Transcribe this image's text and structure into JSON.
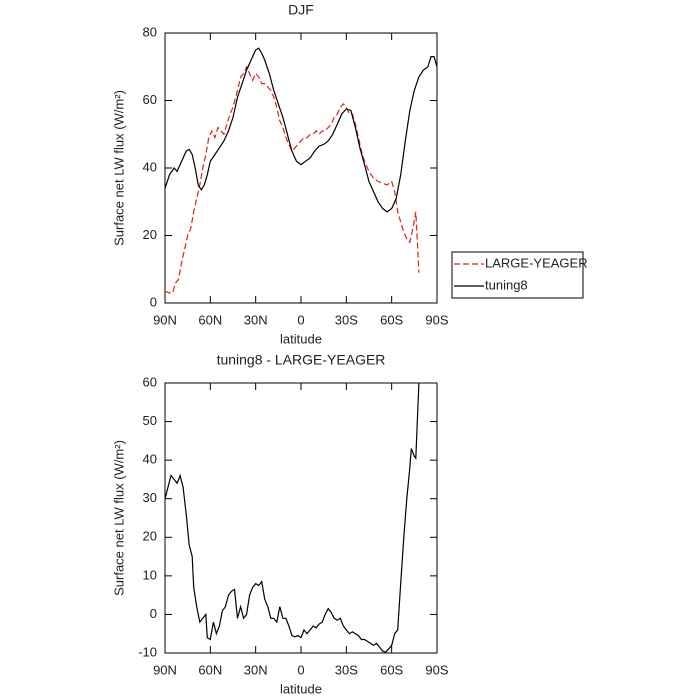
{
  "chart_data": [
    {
      "type": "line",
      "title": "DJF",
      "xlabel": "latitude",
      "ylabel": "Surface net LW flux (W/m²)",
      "xlim": [
        90,
        -90
      ],
      "ylim": [
        0,
        80
      ],
      "xticks": [
        {
          "value": 90,
          "label": "90N"
        },
        {
          "value": 60,
          "label": "60N"
        },
        {
          "value": 30,
          "label": "30N"
        },
        0,
        {
          "value": -30,
          "label": "30S"
        },
        {
          "value": -60,
          "label": "60S"
        },
        {
          "value": -90,
          "label": "90S"
        }
      ],
      "yticks": [
        0,
        20,
        40,
        60,
        80
      ],
      "legend": "right",
      "series": [
        {
          "name": "LARGE-YEAGER",
          "color": "#e0201b",
          "dashed": true,
          "x": [
            90,
            87,
            85,
            83,
            81,
            79,
            77,
            75,
            73,
            71,
            69,
            67,
            65,
            63,
            61,
            59,
            57,
            55,
            53,
            51,
            49,
            47,
            45,
            42,
            40,
            38,
            36,
            34,
            32,
            30,
            28,
            26,
            24,
            22,
            20,
            18,
            16,
            14,
            12,
            10,
            8,
            6,
            4,
            2,
            0,
            -2,
            -4,
            -6,
            -8,
            -10,
            -12,
            -14,
            -16,
            -18,
            -20,
            -22,
            -24,
            -26,
            -28,
            -30,
            -32,
            -34,
            -36,
            -38,
            -40,
            -42,
            -45,
            -48,
            -51,
            -54,
            -57,
            -60,
            -62,
            -64,
            -66,
            -68,
            -70,
            -72,
            -74,
            -76,
            -77,
            -78
          ],
          "values": [
            3.5,
            3,
            3,
            6,
            7,
            12,
            16,
            20,
            22,
            27,
            31,
            35,
            40,
            44,
            49,
            51,
            49,
            52,
            51,
            50,
            53,
            56,
            58,
            63,
            67,
            68,
            70,
            68,
            66,
            68,
            67,
            65,
            65,
            64,
            63,
            61,
            58,
            54,
            52,
            49,
            47,
            45,
            46,
            47,
            48,
            49,
            49,
            50,
            50,
            51,
            50,
            51,
            51,
            52,
            53,
            55,
            56,
            58,
            59,
            58,
            56,
            56,
            53,
            49,
            45,
            42,
            39,
            37,
            36,
            35.5,
            35,
            36,
            33,
            27,
            24,
            21,
            19,
            18,
            22,
            27,
            18,
            9
          ]
        },
        {
          "name": "tuning8",
          "color": "#000000",
          "dashed": false,
          "x": [
            90,
            87,
            84,
            82,
            79,
            76,
            74,
            72,
            70,
            68,
            66,
            64,
            62,
            60,
            57,
            54,
            51,
            48,
            45,
            42,
            39,
            36,
            33,
            30,
            28,
            26,
            24,
            21,
            18,
            15,
            12,
            9,
            6,
            3,
            0,
            -3,
            -6,
            -9,
            -12,
            -15,
            -18,
            -21,
            -24,
            -27,
            -30,
            -33,
            -36,
            -39,
            -42,
            -45,
            -48,
            -51,
            -54,
            -57,
            -60,
            -63,
            -66,
            -69,
            -72,
            -75,
            -78,
            -81,
            -84,
            -86,
            -88,
            -90
          ],
          "values": [
            34,
            38,
            40,
            39,
            42,
            45,
            45.5,
            44,
            40,
            35,
            33.5,
            35,
            38,
            42,
            44,
            46,
            48,
            51,
            55,
            61,
            65,
            69,
            72,
            75,
            75.5,
            74,
            72,
            68,
            63,
            59,
            55,
            50,
            45,
            42,
            41,
            42,
            43,
            45,
            46.5,
            47,
            48,
            50,
            53,
            56,
            57.5,
            57,
            52,
            46,
            41,
            36,
            33,
            30,
            28,
            27,
            28,
            31,
            38,
            48,
            57,
            63,
            67,
            69,
            70,
            73,
            73,
            70
          ]
        }
      ]
    },
    {
      "type": "line",
      "title": "tuning8 - LARGE-YEAGER",
      "xlabel": "latitude",
      "ylabel": "Surface net LW flux (W/m²)",
      "xlim": [
        90,
        -90
      ],
      "ylim": [
        -10,
        60
      ],
      "xticks": [
        {
          "value": 90,
          "label": "90N"
        },
        {
          "value": 60,
          "label": "60N"
        },
        {
          "value": 30,
          "label": "30N"
        },
        0,
        {
          "value": -30,
          "label": "30S"
        },
        {
          "value": -60,
          "label": "60S"
        },
        {
          "value": -90,
          "label": "90S"
        }
      ],
      "yticks": [
        -10,
        0,
        10,
        20,
        30,
        40,
        50,
        60
      ],
      "series": [
        {
          "color": "#000000",
          "dashed": false,
          "x": [
            90,
            88,
            86,
            84,
            82,
            80,
            78,
            76,
            74,
            72,
            71,
            69,
            67,
            65,
            63,
            62,
            60,
            58,
            56,
            54,
            52,
            50,
            48,
            46,
            44,
            42,
            40,
            38,
            36,
            34,
            32,
            30,
            28,
            26,
            24,
            22,
            20,
            18,
            16,
            14,
            12,
            10,
            8,
            6,
            4,
            2,
            0,
            -2,
            -4,
            -6,
            -8,
            -10,
            -12,
            -14,
            -16,
            -18,
            -20,
            -22,
            -24,
            -26,
            -28,
            -30,
            -32,
            -34,
            -36,
            -38,
            -40,
            -42,
            -44,
            -46,
            -48,
            -50,
            -52,
            -54,
            -56,
            -58,
            -60,
            -62,
            -64,
            -66,
            -68,
            -70,
            -72,
            -73,
            -75,
            -76,
            -78
          ],
          "values": [
            30,
            33,
            36,
            35,
            34,
            36,
            33,
            26,
            18,
            15,
            7,
            2,
            -2,
            -1,
            0,
            -6,
            -6.5,
            -2,
            -5,
            -3,
            1,
            2,
            5,
            6,
            6.5,
            -1,
            2,
            -1,
            0,
            5,
            7,
            8,
            7.5,
            8.5,
            4,
            2,
            -1,
            -1,
            -2,
            2,
            -1,
            -1,
            -3,
            -5.5,
            -5.8,
            -5.5,
            -6,
            -4,
            -5,
            -4,
            -3,
            -3.5,
            -2.5,
            -2,
            0,
            1.5,
            0.5,
            -1,
            -1.5,
            -1,
            -3,
            -4,
            -5,
            -4.5,
            -5,
            -5.5,
            -6.5,
            -6.5,
            -7,
            -7.5,
            -8,
            -7.5,
            -8.5,
            -9.5,
            -9.8,
            -9,
            -8,
            -5,
            -4,
            8,
            20,
            30,
            38,
            43,
            41,
            40.5,
            60
          ]
        }
      ]
    }
  ]
}
